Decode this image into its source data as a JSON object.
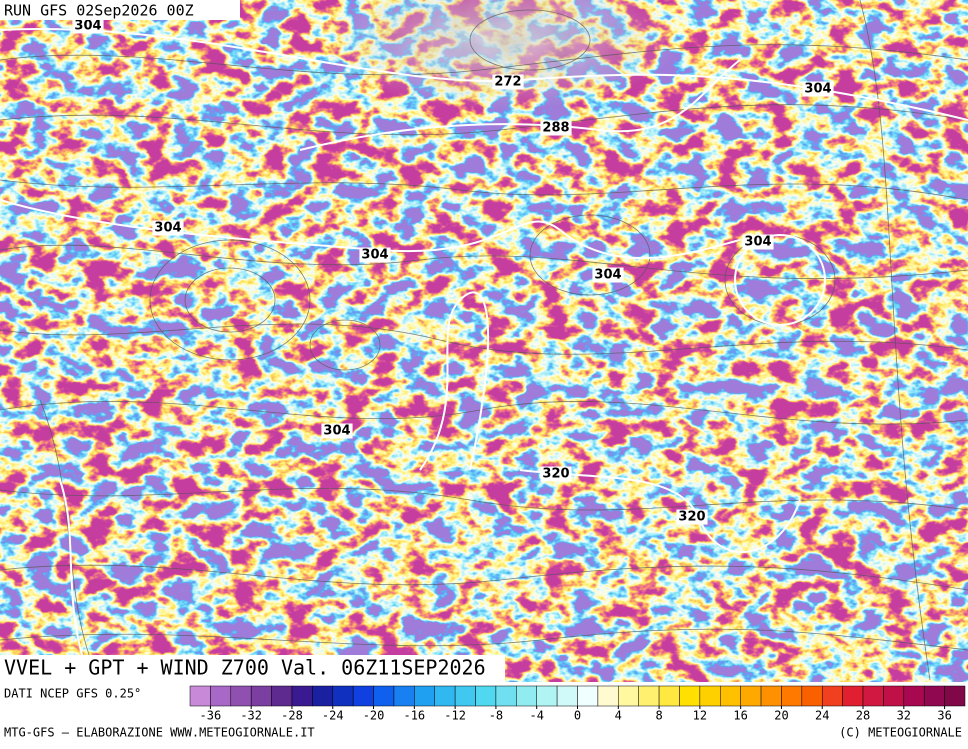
{
  "header": {
    "run": "RUN GFS 02Sep2026 00Z"
  },
  "map": {
    "contour_labels": [
      304,
      272,
      288,
      304,
      304,
      304,
      304,
      304,
      304,
      320,
      320
    ]
  },
  "title": "VVEL + GPT + WIND Z700 Val. 06Z11SEP2026",
  "source": "DATI NCEP GFS 0.25°",
  "colorbar": {
    "colors": [
      "#c88ad8",
      "#a868c8",
      "#9050b0",
      "#7a3fa0",
      "#5e2a90",
      "#3a1a90",
      "#1a20a0",
      "#1030c0",
      "#1040e0",
      "#1060f0",
      "#1880f0",
      "#20a0f0",
      "#30b8f0",
      "#40c8f0",
      "#50d8f0",
      "#70e0f0",
      "#90ecf0",
      "#b0f4f4",
      "#d0fafa",
      "#f0ffff",
      "#fffad0",
      "#fff8a0",
      "#fff070",
      "#ffe840",
      "#ffe000",
      "#ffd000",
      "#ffc000",
      "#ffa800",
      "#ff9000",
      "#ff7800",
      "#f86000",
      "#f04020",
      "#e02030",
      "#d01840",
      "#c01048",
      "#a80850",
      "#900850",
      "#800848"
    ],
    "ticks": [
      -36,
      -32,
      -28,
      -24,
      -20,
      -16,
      -12,
      -8,
      -4,
      0,
      4,
      8,
      12,
      16,
      20,
      24,
      28,
      32,
      36
    ]
  },
  "footer": {
    "left": "MTG-GFS — ELABORAZIONE WWW.METEOGIORNALE.IT",
    "right": "(C) METEOGIORNALE"
  }
}
